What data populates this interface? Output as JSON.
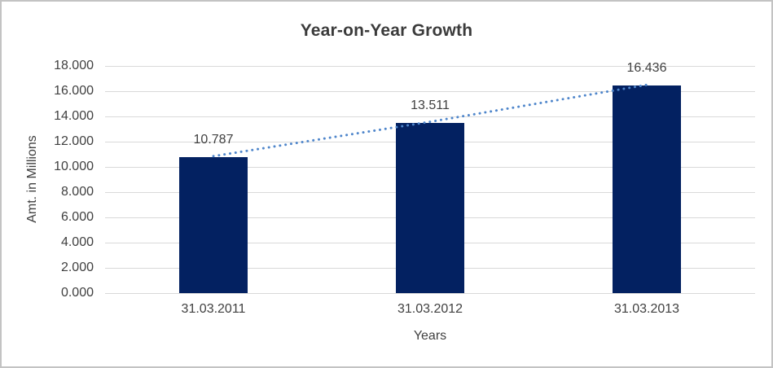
{
  "chart_data": {
    "type": "bar",
    "title": "Year-on-Year Growth",
    "xlabel": "Years",
    "ylabel": "Amt. in Millions",
    "categories": [
      "31.03.2011",
      "31.03.2012",
      "31.03.2013"
    ],
    "series": [
      {
        "name": "Amt. in Millions",
        "type": "bar",
        "values": [
          10.787,
          13.511,
          16.436
        ]
      },
      {
        "name": "trend",
        "type": "dotted-line",
        "values": [
          10.787,
          13.511,
          16.436
        ]
      }
    ],
    "data_labels": [
      "10.787",
      "13.511",
      "16.436"
    ],
    "yticks": [
      "0.000",
      "2.000",
      "4.000",
      "6.000",
      "8.000",
      "10.000",
      "12.000",
      "14.000",
      "16.000",
      "18.000"
    ],
    "ylim": [
      0,
      18
    ],
    "ytick_step": 2,
    "grid": true,
    "legend_position": "none",
    "colors": {
      "bar": "#032161",
      "trendline": "#4f86cb",
      "gridline": "#d9d9d9",
      "text": "#404040",
      "title_text": "#3b3b3b",
      "frame_border": "#c3c3c3",
      "background": "#ffffff"
    }
  }
}
